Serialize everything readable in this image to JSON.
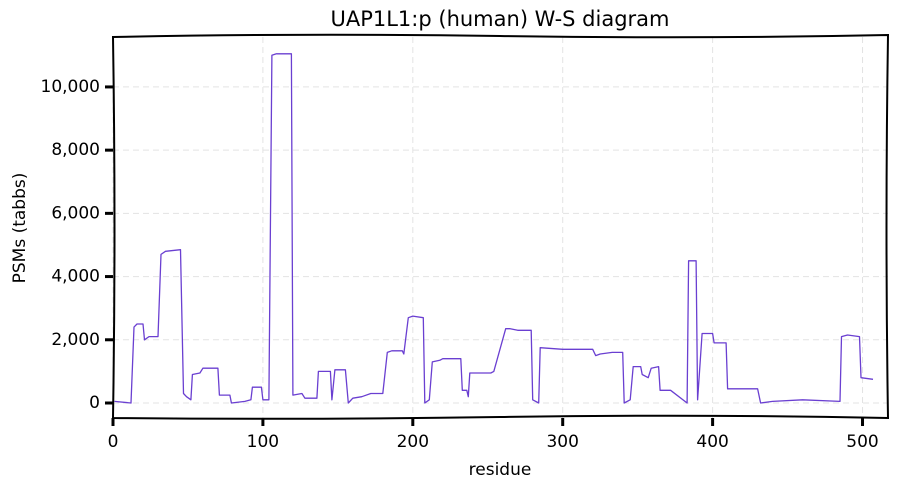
{
  "chart_data": {
    "type": "line",
    "title": "UAP1L1:p (human) W-S diagram",
    "x_label": "residue",
    "y_label": "PSMs (tabbs)",
    "xlim": [
      0,
      517
    ],
    "ylim": [
      -475,
      11580
    ],
    "xticks": [
      0,
      100,
      200,
      300,
      400,
      500
    ],
    "yticks": [
      0,
      {
        "value": 2000,
        "label": "2,000"
      },
      {
        "value": 4000,
        "label": "4,000"
      },
      {
        "value": 6000,
        "label": "6,000"
      },
      {
        "value": 8000,
        "label": "8,000"
      },
      {
        "value": 10000,
        "label": "10,000"
      }
    ],
    "grid": true,
    "series": [
      {
        "color": "#6a3fd1",
        "x": [
          1,
          12,
          14,
          16,
          20,
          21,
          24,
          30,
          32,
          35,
          45,
          47,
          49,
          52,
          53,
          58,
          60,
          70,
          71,
          78,
          79,
          88,
          92,
          93,
          99,
          100,
          104,
          106,
          109,
          119,
          120,
          126,
          128,
          136,
          137,
          145,
          146,
          148,
          155,
          157,
          160,
          166,
          172,
          180,
          183,
          186,
          193,
          194,
          197,
          200,
          207,
          208,
          211,
          213,
          218,
          220,
          232,
          233,
          236,
          237,
          238,
          252,
          254,
          262,
          265,
          270,
          279,
          280,
          284,
          285,
          300,
          320,
          322,
          325,
          333,
          340,
          341,
          345,
          347,
          352,
          353,
          357,
          359,
          364,
          365,
          372,
          383,
          384,
          389,
          390,
          393,
          400,
          401,
          409,
          410,
          420,
          430,
          432,
          440,
          460,
          485,
          486,
          490,
          498,
          499,
          507
        ],
        "values": [
          50,
          0,
          2400,
          2500,
          2500,
          2000,
          2100,
          2100,
          4700,
          4800,
          4850,
          300,
          200,
          100,
          900,
          950,
          1100,
          1100,
          250,
          250,
          0,
          50,
          100,
          500,
          500,
          100,
          100,
          11000,
          11050,
          11050,
          250,
          300,
          150,
          150,
          1000,
          1000,
          100,
          1050,
          1050,
          0,
          150,
          200,
          300,
          300,
          1600,
          1650,
          1650,
          1550,
          2700,
          2750,
          2700,
          0,
          100,
          1300,
          1350,
          1400,
          1400,
          400,
          400,
          200,
          950,
          950,
          1000,
          2350,
          2350,
          2300,
          2300,
          100,
          0,
          1750,
          1700,
          1700,
          1500,
          1550,
          1600,
          1600,
          0,
          100,
          1150,
          1150,
          900,
          800,
          1100,
          1150,
          400,
          400,
          0,
          4500,
          4500,
          100,
          2200,
          2200,
          1900,
          1900,
          450,
          450,
          450,
          0,
          50,
          100,
          50,
          2100,
          2150,
          2100,
          800,
          750
        ]
      }
    ]
  }
}
